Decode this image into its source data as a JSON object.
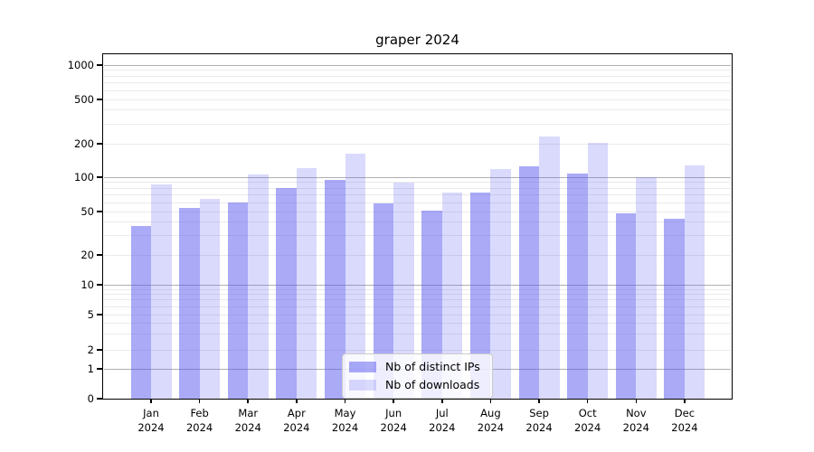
{
  "title": "graper 2024",
  "colors": {
    "bar_base": "#5555f0",
    "bar_ips": "rgba(85,85,240,0.50)",
    "bar_downloads": "rgba(85,85,240,0.22)",
    "grid_major": "#b0b0b0",
    "grid_minor": "#eaeaea",
    "axis": "#000000"
  },
  "legend": {
    "items": [
      {
        "label": "Nb of distinct IPs",
        "series": "ips"
      },
      {
        "label": "Nb of downloads",
        "series": "downloads"
      }
    ]
  },
  "chart_data": {
    "type": "bar",
    "title": "graper 2024",
    "categories": [
      "Jan",
      "Feb",
      "Mar",
      "Apr",
      "May",
      "Jun",
      "Jul",
      "Aug",
      "Sep",
      "Oct",
      "Nov",
      "Dec"
    ],
    "year": "2024",
    "series": [
      {
        "name": "Nb of distinct IPs",
        "color": "rgba(85,85,240,0.50)",
        "values": [
          37,
          54,
          60,
          81,
          94,
          59,
          51,
          73,
          126,
          108,
          48,
          43
        ]
      },
      {
        "name": "Nb of downloads",
        "color": "rgba(85,85,240,0.22)",
        "values": [
          87,
          65,
          105,
          120,
          162,
          89,
          74,
          118,
          231,
          205,
          100,
          127
        ]
      }
    ],
    "xlabel": "",
    "ylabel": "",
    "yscale": "symlog",
    "yticks": [
      0,
      1,
      2,
      5,
      10,
      20,
      50,
      100,
      200,
      500,
      1000
    ],
    "minor_gridlines": [
      2,
      3,
      4,
      5,
      6,
      7,
      8,
      9,
      20,
      30,
      40,
      50,
      60,
      70,
      80,
      90,
      200,
      300,
      400,
      500,
      600,
      700,
      800,
      900
    ],
    "major_gridlines": [
      1,
      10,
      100,
      1000
    ],
    "ylim": [
      0,
      1270
    ],
    "grid": true,
    "legend_position": "lower center"
  }
}
